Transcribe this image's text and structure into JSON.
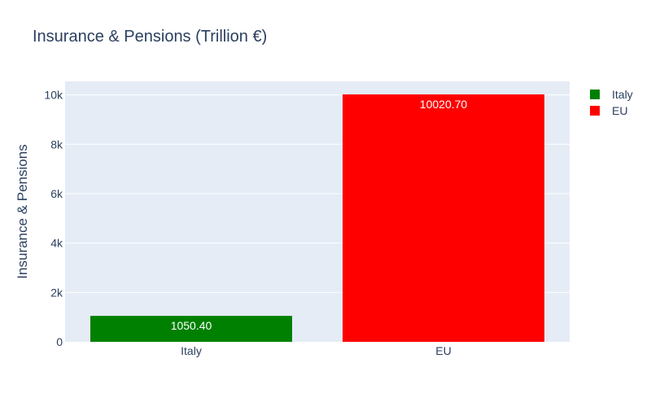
{
  "chart_data": {
    "type": "bar",
    "title": "Insurance & Pensions (Trillion €)",
    "xlabel": "",
    "ylabel": "Insurance & Pensions",
    "categories": [
      "Italy",
      "EU"
    ],
    "series": [
      {
        "name": "Italy",
        "category": "Italy",
        "value": 1050.4,
        "label": "1050.40",
        "color": "#008000"
      },
      {
        "name": "EU",
        "category": "EU",
        "value": 10020.7,
        "label": "10020.70",
        "color": "#ff0000"
      }
    ],
    "ylim": [
      0,
      10548
    ],
    "yticks": [
      {
        "value": 0,
        "label": "0"
      },
      {
        "value": 2000,
        "label": "2k"
      },
      {
        "value": 4000,
        "label": "4k"
      },
      {
        "value": 6000,
        "label": "6k"
      },
      {
        "value": 8000,
        "label": "8k"
      },
      {
        "value": 10000,
        "label": "10k"
      }
    ],
    "grid": true,
    "legend_position": "top-right",
    "plot_background": "#e5ecf6",
    "text_color": "#2a3f5f"
  }
}
